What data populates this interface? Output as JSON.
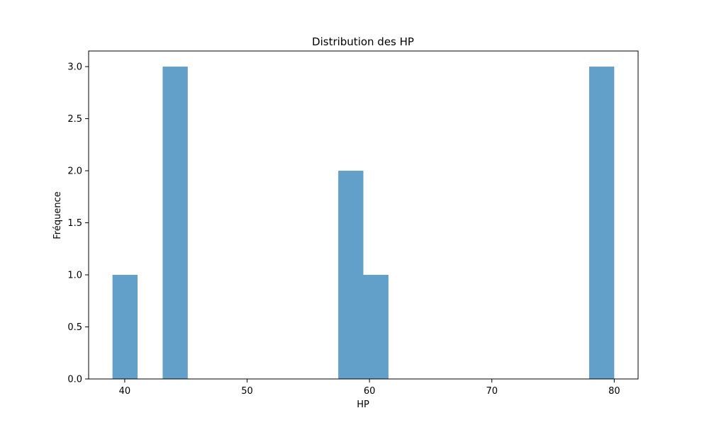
{
  "chart_data": {
    "type": "bar",
    "title": "Distribution des HP",
    "xlabel": "HP",
    "ylabel": "Fréquence",
    "xlim": [
      37.05,
      81.95
    ],
    "ylim": [
      0,
      3.15
    ],
    "grid": false,
    "bar_color": "#1f77b4",
    "bar_opacity": 0.7,
    "bins": [
      {
        "x0": 39.0,
        "x1": 41.05,
        "count": 1
      },
      {
        "x0": 43.1,
        "x1": 45.15,
        "count": 3
      },
      {
        "x0": 57.45,
        "x1": 59.5,
        "count": 2
      },
      {
        "x0": 59.5,
        "x1": 61.55,
        "count": 1
      },
      {
        "x0": 77.95,
        "x1": 80.0,
        "count": 3
      }
    ],
    "x_ticks": [
      "40",
      "50",
      "60",
      "70",
      "80"
    ],
    "x_tick_values": [
      40,
      50,
      60,
      70,
      80
    ],
    "y_ticks": [
      "0.0",
      "0.5",
      "1.0",
      "1.5",
      "2.0",
      "2.5",
      "3.0"
    ],
    "y_tick_values": [
      0,
      0.5,
      1.0,
      1.5,
      2.0,
      2.5,
      3.0
    ]
  }
}
